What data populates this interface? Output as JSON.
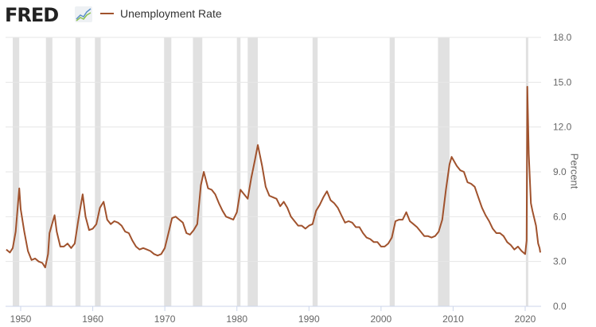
{
  "brand": "FRED",
  "chart_data": {
    "type": "line",
    "title": "",
    "xlabel": "",
    "ylabel": "Percent",
    "xlim": [
      1948,
      2022.2
    ],
    "ylim": [
      0,
      18
    ],
    "yticks": [
      "0.0",
      "3.0",
      "6.0",
      "9.0",
      "12.0",
      "15.0",
      "18.0"
    ],
    "xticks": [
      "1950",
      "1960",
      "1970",
      "1980",
      "1990",
      "2000",
      "2010",
      "2020"
    ],
    "grid": "horizontal",
    "legend_position": "top-left",
    "colors": {
      "line": "#a0522d",
      "recession": "#e1e1e1",
      "grid": "#e6e6e6",
      "axis": "#ccd6eb"
    },
    "recessions": [
      [
        1948.9,
        1949.8
      ],
      [
        1953.5,
        1954.4
      ],
      [
        1957.6,
        1958.3
      ],
      [
        1960.3,
        1961.1
      ],
      [
        1969.9,
        1970.9
      ],
      [
        1973.9,
        1975.2
      ],
      [
        1980.0,
        1980.5
      ],
      [
        1981.5,
        1982.9
      ],
      [
        1990.5,
        1991.2
      ],
      [
        2001.2,
        2001.9
      ],
      [
        2007.9,
        2009.5
      ],
      [
        2020.1,
        2020.3
      ]
    ],
    "series": [
      {
        "name": "Unemployment Rate",
        "points": [
          [
            1948.0,
            3.8
          ],
          [
            1948.5,
            3.6
          ],
          [
            1948.9,
            3.9
          ],
          [
            1949.3,
            5.0
          ],
          [
            1949.8,
            7.9
          ],
          [
            1950.0,
            6.5
          ],
          [
            1950.5,
            5.0
          ],
          [
            1951.0,
            3.7
          ],
          [
            1951.5,
            3.1
          ],
          [
            1952.0,
            3.2
          ],
          [
            1952.5,
            3.0
          ],
          [
            1953.0,
            2.9
          ],
          [
            1953.4,
            2.6
          ],
          [
            1953.8,
            3.5
          ],
          [
            1954.0,
            4.9
          ],
          [
            1954.7,
            6.1
          ],
          [
            1955.0,
            5.0
          ],
          [
            1955.5,
            4.0
          ],
          [
            1956.0,
            4.0
          ],
          [
            1956.5,
            4.2
          ],
          [
            1957.0,
            3.9
          ],
          [
            1957.5,
            4.2
          ],
          [
            1958.0,
            5.8
          ],
          [
            1958.6,
            7.5
          ],
          [
            1959.0,
            6.0
          ],
          [
            1959.5,
            5.1
          ],
          [
            1960.0,
            5.2
          ],
          [
            1960.5,
            5.5
          ],
          [
            1961.0,
            6.6
          ],
          [
            1961.5,
            7.0
          ],
          [
            1962.0,
            5.8
          ],
          [
            1962.5,
            5.5
          ],
          [
            1963.0,
            5.7
          ],
          [
            1963.5,
            5.6
          ],
          [
            1964.0,
            5.4
          ],
          [
            1964.5,
            5.0
          ],
          [
            1965.0,
            4.9
          ],
          [
            1965.5,
            4.4
          ],
          [
            1966.0,
            4.0
          ],
          [
            1966.5,
            3.8
          ],
          [
            1967.0,
            3.9
          ],
          [
            1967.5,
            3.8
          ],
          [
            1968.0,
            3.7
          ],
          [
            1968.5,
            3.5
          ],
          [
            1969.0,
            3.4
          ],
          [
            1969.5,
            3.5
          ],
          [
            1970.0,
            3.9
          ],
          [
            1970.5,
            4.9
          ],
          [
            1971.0,
            5.9
          ],
          [
            1971.5,
            6.0
          ],
          [
            1972.0,
            5.8
          ],
          [
            1972.5,
            5.6
          ],
          [
            1973.0,
            4.9
          ],
          [
            1973.5,
            4.8
          ],
          [
            1974.0,
            5.1
          ],
          [
            1974.5,
            5.5
          ],
          [
            1975.0,
            8.1
          ],
          [
            1975.4,
            9.0
          ],
          [
            1976.0,
            7.9
          ],
          [
            1976.5,
            7.8
          ],
          [
            1977.0,
            7.5
          ],
          [
            1977.5,
            6.9
          ],
          [
            1978.0,
            6.4
          ],
          [
            1978.5,
            6.0
          ],
          [
            1979.0,
            5.9
          ],
          [
            1979.5,
            5.8
          ],
          [
            1980.0,
            6.3
          ],
          [
            1980.5,
            7.8
          ],
          [
            1981.0,
            7.5
          ],
          [
            1981.5,
            7.2
          ],
          [
            1982.0,
            8.6
          ],
          [
            1982.5,
            9.8
          ],
          [
            1982.9,
            10.8
          ],
          [
            1983.5,
            9.4
          ],
          [
            1984.0,
            8.0
          ],
          [
            1984.5,
            7.4
          ],
          [
            1985.0,
            7.3
          ],
          [
            1985.5,
            7.2
          ],
          [
            1986.0,
            6.7
          ],
          [
            1986.5,
            7.0
          ],
          [
            1987.0,
            6.6
          ],
          [
            1987.5,
            6.0
          ],
          [
            1988.0,
            5.7
          ],
          [
            1988.5,
            5.4
          ],
          [
            1989.0,
            5.4
          ],
          [
            1989.5,
            5.2
          ],
          [
            1990.0,
            5.4
          ],
          [
            1990.5,
            5.5
          ],
          [
            1991.0,
            6.4
          ],
          [
            1991.5,
            6.8
          ],
          [
            1992.0,
            7.3
          ],
          [
            1992.5,
            7.7
          ],
          [
            1993.0,
            7.1
          ],
          [
            1993.5,
            6.9
          ],
          [
            1994.0,
            6.6
          ],
          [
            1994.5,
            6.1
          ],
          [
            1995.0,
            5.6
          ],
          [
            1995.5,
            5.7
          ],
          [
            1996.0,
            5.6
          ],
          [
            1996.5,
            5.3
          ],
          [
            1997.0,
            5.3
          ],
          [
            1997.5,
            4.9
          ],
          [
            1998.0,
            4.6
          ],
          [
            1998.5,
            4.5
          ],
          [
            1999.0,
            4.3
          ],
          [
            1999.5,
            4.3
          ],
          [
            2000.0,
            4.0
          ],
          [
            2000.5,
            4.0
          ],
          [
            2001.0,
            4.2
          ],
          [
            2001.5,
            4.6
          ],
          [
            2002.0,
            5.7
          ],
          [
            2002.5,
            5.8
          ],
          [
            2003.0,
            5.8
          ],
          [
            2003.5,
            6.3
          ],
          [
            2004.0,
            5.7
          ],
          [
            2004.5,
            5.5
          ],
          [
            2005.0,
            5.3
          ],
          [
            2005.5,
            5.0
          ],
          [
            2006.0,
            4.7
          ],
          [
            2006.5,
            4.7
          ],
          [
            2007.0,
            4.6
          ],
          [
            2007.5,
            4.7
          ],
          [
            2008.0,
            5.0
          ],
          [
            2008.5,
            5.8
          ],
          [
            2009.0,
            7.8
          ],
          [
            2009.5,
            9.5
          ],
          [
            2009.8,
            10.0
          ],
          [
            2010.5,
            9.4
          ],
          [
            2011.0,
            9.1
          ],
          [
            2011.5,
            9.0
          ],
          [
            2012.0,
            8.3
          ],
          [
            2012.5,
            8.2
          ],
          [
            2013.0,
            8.0
          ],
          [
            2013.5,
            7.3
          ],
          [
            2014.0,
            6.6
          ],
          [
            2014.5,
            6.1
          ],
          [
            2015.0,
            5.7
          ],
          [
            2015.5,
            5.2
          ],
          [
            2016.0,
            4.9
          ],
          [
            2016.5,
            4.9
          ],
          [
            2017.0,
            4.7
          ],
          [
            2017.5,
            4.3
          ],
          [
            2018.0,
            4.1
          ],
          [
            2018.5,
            3.8
          ],
          [
            2019.0,
            4.0
          ],
          [
            2019.5,
            3.7
          ],
          [
            2020.0,
            3.5
          ],
          [
            2020.2,
            4.4
          ],
          [
            2020.3,
            14.7
          ],
          [
            2020.5,
            10.2
          ],
          [
            2020.8,
            6.9
          ],
          [
            2021.0,
            6.4
          ],
          [
            2021.5,
            5.4
          ],
          [
            2021.8,
            4.2
          ],
          [
            2022.0,
            3.9
          ],
          [
            2022.1,
            3.6
          ]
        ]
      }
    ]
  }
}
